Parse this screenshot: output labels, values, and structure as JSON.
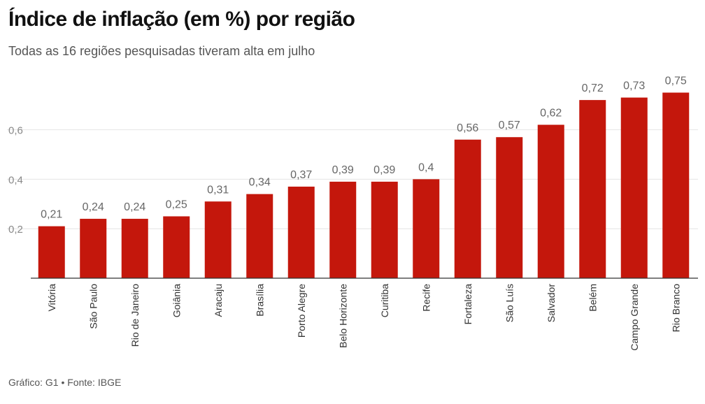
{
  "header": {
    "title": "Índice de inflação (em %) por região",
    "subtitle": "Todas as 16 regiões pesquisadas tiveram alta em julho"
  },
  "footer": {
    "source": "Gráfico: G1 • Fonte: IBGE"
  },
  "colors": {
    "bar": "#c4170c",
    "grid": "#e4e4e4"
  },
  "chart_data": {
    "type": "bar",
    "title": "Índice de inflação (em %) por região",
    "subtitle": "Todas as 16 regiões pesquisadas tiveram alta em julho",
    "xlabel": "",
    "ylabel": "",
    "ylim": [
      0,
      0.8
    ],
    "yticks": [
      0.2,
      0.4,
      0.6
    ],
    "ytick_labels": [
      "0,2",
      "0,4",
      "0,6"
    ],
    "grid": true,
    "categories": [
      "Vitória",
      "São Paulo",
      "Rio de Janeiro",
      "Goiânia",
      "Aracaju",
      "Brasília",
      "Porto Alegre",
      "Belo Horizonte",
      "Curitiba",
      "Recife",
      "Fortaleza",
      "São Luís",
      "Salvador",
      "Belém",
      "Campo Grande",
      "Rio Branco"
    ],
    "values": [
      0.21,
      0.24,
      0.24,
      0.25,
      0.31,
      0.34,
      0.37,
      0.39,
      0.39,
      0.4,
      0.56,
      0.57,
      0.62,
      0.72,
      0.73,
      0.75
    ],
    "value_labels": [
      "0,21",
      "0,24",
      "0,24",
      "0,25",
      "0,31",
      "0,34",
      "0,37",
      "0,39",
      "0,39",
      "0,4",
      "0,56",
      "0,57",
      "0,62",
      "0,72",
      "0,73",
      "0,75"
    ]
  }
}
